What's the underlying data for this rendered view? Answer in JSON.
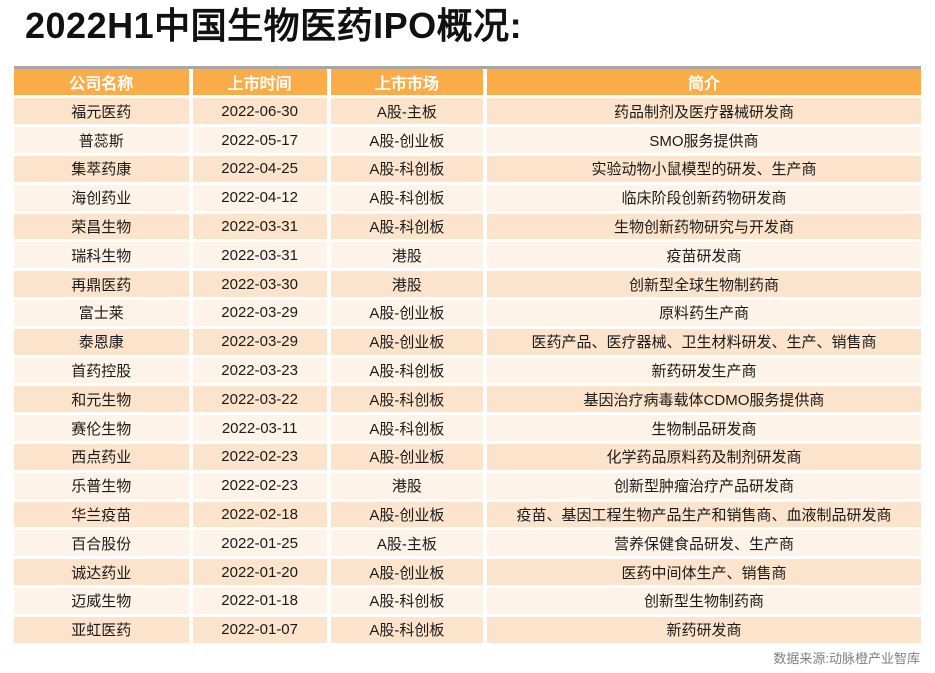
{
  "title": "2022H1中国生物医药IPO概况:",
  "footer": {
    "source": "数据来源:动脉橙产业智库"
  },
  "colors": {
    "header_bg": "#f9ac48",
    "row_odd_bg": "#fce3cc",
    "row_even_bg": "#fdf3e8",
    "header_text": "#ffffff",
    "body_text": "#1a1a1a",
    "top_border_line": "#a6a6a6",
    "footer_text": "#7f7f7f",
    "title_text": "#111111"
  },
  "chart_data": {
    "type": "table",
    "title": "2022H1中国生物医药IPO概况:",
    "columns": [
      "公司名称",
      "上市时间",
      "上市市场",
      "简介"
    ],
    "rows": [
      [
        "福元医药",
        "2022-06-30",
        "A股-主板",
        "药品制剂及医疗器械研发商"
      ],
      [
        "普蕊斯",
        "2022-05-17",
        "A股-创业板",
        "SMO服务提供商"
      ],
      [
        "集萃药康",
        "2022-04-25",
        "A股-科创板",
        "实验动物小鼠模型的研发、生产商"
      ],
      [
        "海创药业",
        "2022-04-12",
        "A股-科创板",
        "临床阶段创新药物研发商"
      ],
      [
        "荣昌生物",
        "2022-03-31",
        "A股-科创板",
        "生物创新药物研究与开发商"
      ],
      [
        "瑞科生物",
        "2022-03-31",
        "港股",
        "疫苗研发商"
      ],
      [
        "再鼎医药",
        "2022-03-30",
        "港股",
        "创新型全球生物制药商"
      ],
      [
        "富士莱",
        "2022-03-29",
        "A股-创业板",
        "原料药生产商"
      ],
      [
        "泰恩康",
        "2022-03-29",
        "A股-创业板",
        "医药产品、医疗器械、卫生材料研发、生产、销售商"
      ],
      [
        "首药控股",
        "2022-03-23",
        "A股-科创板",
        "新药研发生产商"
      ],
      [
        "和元生物",
        "2022-03-22",
        "A股-科创板",
        "基因治疗病毒载体CDMO服务提供商"
      ],
      [
        "赛伦生物",
        "2022-03-11",
        "A股-科创板",
        "生物制品研发商"
      ],
      [
        "西点药业",
        "2022-02-23",
        "A股-创业板",
        "化学药品原料药及制剂研发商"
      ],
      [
        "乐普生物",
        "2022-02-23",
        "港股",
        "创新型肿瘤治疗产品研发商"
      ],
      [
        "华兰疫苗",
        "2022-02-18",
        "A股-创业板",
        "疫苗、基因工程生物产品生产和销售商、血液制品研发商"
      ],
      [
        "百合股份",
        "2022-01-25",
        "A股-主板",
        "营养保健食品研发、生产商"
      ],
      [
        "诚达药业",
        "2022-01-20",
        "A股-创业板",
        "医药中间体生产、销售商"
      ],
      [
        "迈威生物",
        "2022-01-18",
        "A股-科创板",
        "创新型生物制药商"
      ],
      [
        "亚虹医药",
        "2022-01-07",
        "A股-科创板",
        "新药研发商"
      ]
    ],
    "source": "数据来源:动脉橙产业智库",
    "layout": {
      "grid": "off",
      "zebra_striping": true,
      "header_position": "top"
    }
  }
}
